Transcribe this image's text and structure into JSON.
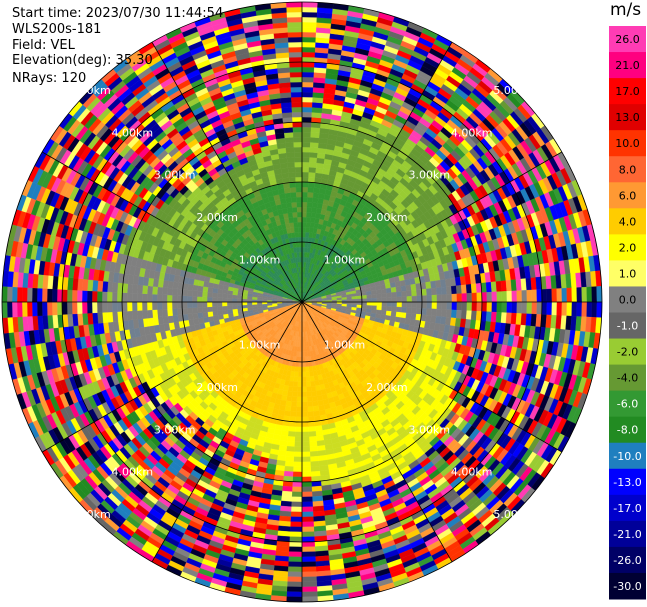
{
  "header": {
    "start_time": "Start time: 2023/07/30 11:44:54",
    "instrument": "WLS200s-181",
    "field": "Field: VEL",
    "elevation": "Elevation(deg): 35.30",
    "nrays": "NRays: 120"
  },
  "colorbar": {
    "unit": "m/s",
    "ticks": [
      "26.0",
      "21.0",
      "17.0",
      "13.0",
      "10.0",
      "8.0",
      "6.0",
      "4.0",
      "2.0",
      "1.0",
      "0.0",
      "-1.0",
      "-2.0",
      "-4.0",
      "-6.0",
      "-8.0",
      "-10.0",
      "-13.0",
      "-17.0",
      "-21.0",
      "-26.0",
      "-30.0"
    ],
    "colors": [
      "#ff3cb4",
      "#ff0080",
      "#ff0000",
      "#e00000",
      "#ff3300",
      "#ff6633",
      "#ff9933",
      "#ffcc00",
      "#ffff00",
      "#ffff66",
      "#808080",
      "#666666",
      "#99cc33",
      "#669933",
      "#339933",
      "#228b22",
      "#1f7fbf",
      "#0000ff",
      "#0000cc",
      "#000099",
      "#000066",
      "#000033"
    ]
  },
  "chart_data": {
    "type": "ppi",
    "range_rings": [
      "1.00km",
      "2.00km",
      "3.00km",
      "4.00km",
      "5.00km"
    ],
    "max_range_km": 5.0,
    "nrays": 120,
    "field": "VEL",
    "units": "m/s",
    "vmin": -30.0,
    "vmax": 30.0,
    "pattern": "Near-field velocities: negative (green, about -2 to -8 m/s) toward north, positive (yellow/orange, about 2 to 8 m/s) toward south, near-zero (grey) at east/west; beyond about 3 km, noisy values spanning the full colour scale"
  }
}
